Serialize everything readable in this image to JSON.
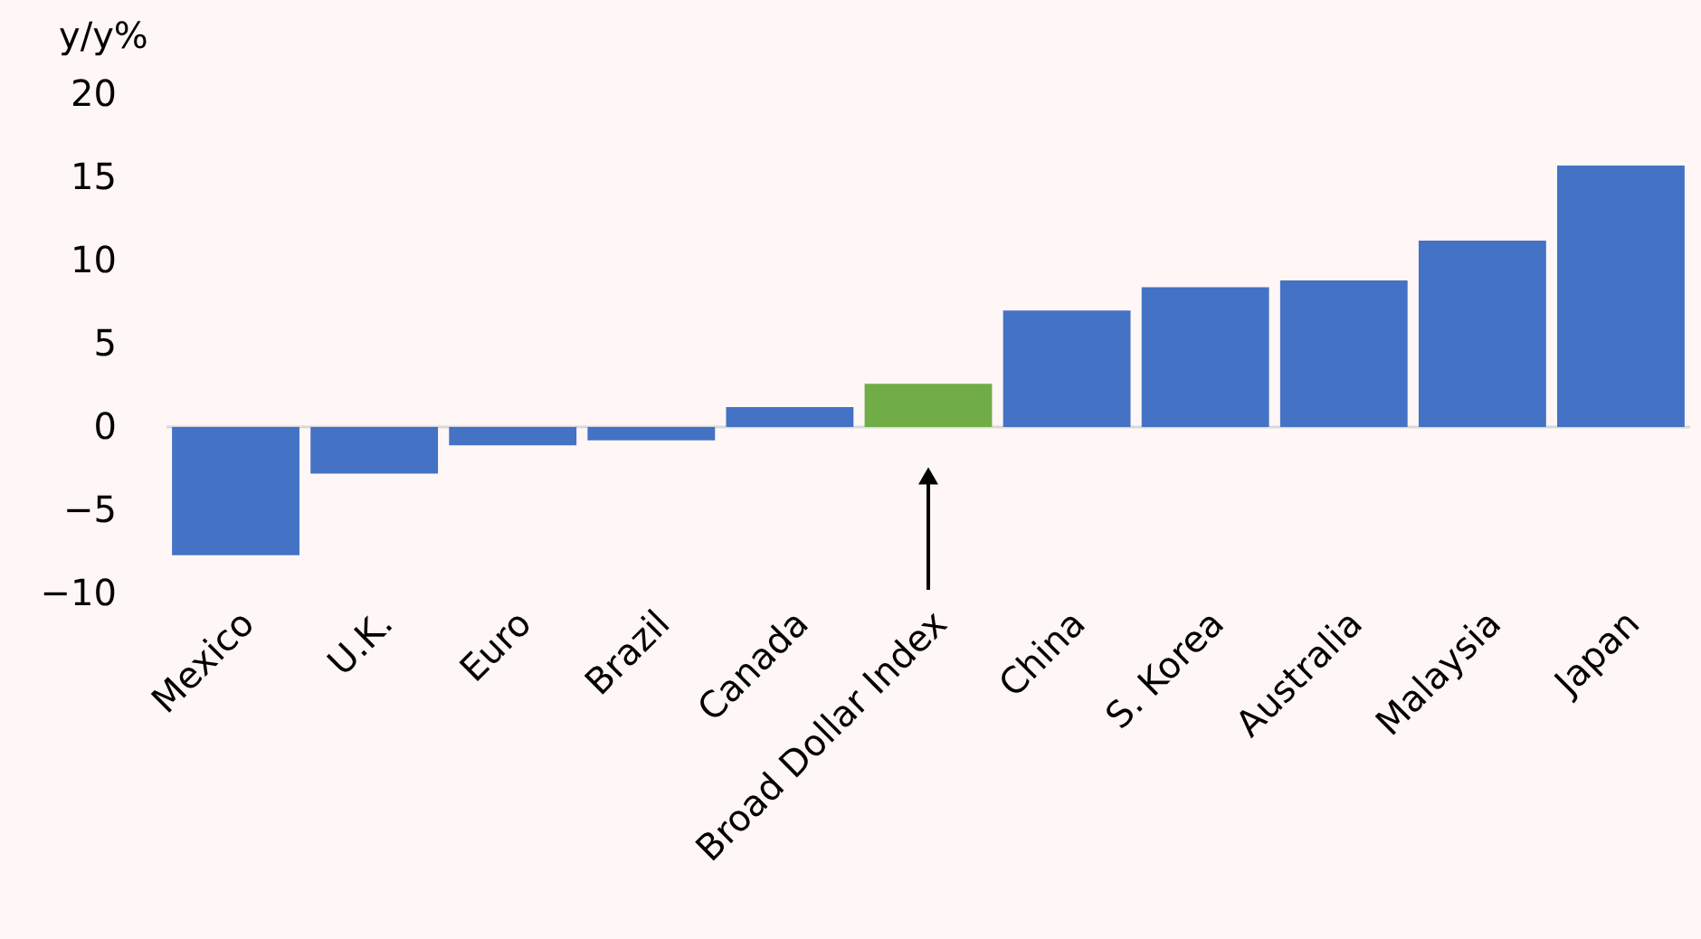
{
  "chart_data": {
    "type": "bar",
    "ylabel": "y/y%",
    "categories": [
      "Mexico",
      "U.K.",
      "Euro",
      "Brazil",
      "Canada",
      "Broad Dollar Index",
      "China",
      "S. Korea",
      "Australia",
      "Malaysia",
      "Japan"
    ],
    "values": [
      -7.7,
      -2.8,
      -1.1,
      -0.8,
      1.2,
      2.6,
      7.0,
      8.4,
      8.8,
      11.2,
      15.7
    ],
    "colors": [
      "#4472c4",
      "#4472c4",
      "#4472c4",
      "#4472c4",
      "#4472c4",
      "#70ad47",
      "#4472c4",
      "#4472c4",
      "#4472c4",
      "#4472c4",
      "#4472c4"
    ],
    "ylim": [
      -10,
      20
    ],
    "yticks": [
      -10,
      -5,
      0,
      5,
      10,
      15,
      20
    ]
  }
}
